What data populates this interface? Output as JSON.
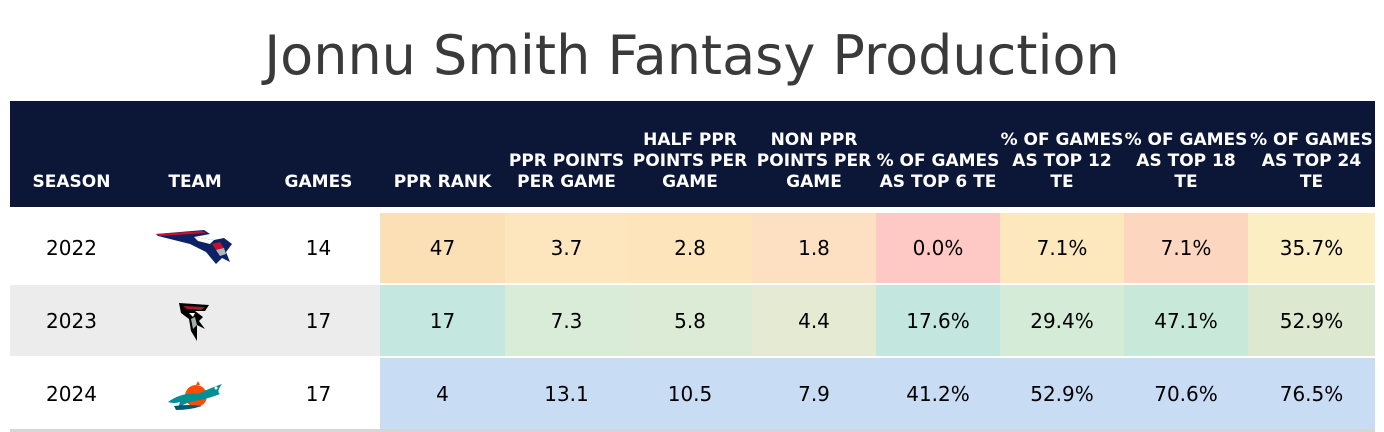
{
  "title": "Jonnu Smith Fantasy Production",
  "columns": [
    "SEASON",
    "TEAM",
    "GAMES",
    "PPR RANK",
    "PPR POINTS PER GAME",
    "HALF PPR POINTS PER GAME",
    "NON PPR POINTS PER GAME",
    "% OF GAMES AS TOP 6 TE",
    "% OF GAMES AS TOP 12 TE",
    "% OF GAMES AS TOP 18 TE",
    "% OF GAMES AS TOP 24 TE"
  ],
  "rows": [
    {
      "season": "2022",
      "team_logo": "patriots-logo",
      "games": "14",
      "ppr_rank": "47",
      "ppr_ppg": "3.7",
      "half_ppr_ppg": "2.8",
      "non_ppr_ppg": "1.8",
      "top6": "0.0%",
      "top12": "7.1%",
      "top18": "7.1%",
      "top24": "35.7%"
    },
    {
      "season": "2023",
      "team_logo": "falcons-logo",
      "games": "17",
      "ppr_rank": "17",
      "ppr_ppg": "7.3",
      "half_ppr_ppg": "5.8",
      "non_ppr_ppg": "4.4",
      "top6": "17.6%",
      "top12": "29.4%",
      "top18": "47.1%",
      "top24": "52.9%"
    },
    {
      "season": "2024",
      "team_logo": "dolphins-logo",
      "games": "17",
      "ppr_rank": "4",
      "ppr_ppg": "13.1",
      "half_ppr_ppg": "10.5",
      "non_ppr_ppg": "7.9",
      "top6": "41.2%",
      "top12": "52.9%",
      "top18": "70.6%",
      "top24": "76.5%"
    }
  ],
  "cell_colors": [
    [
      "#fbe0b6",
      "#fde6be",
      "#fde4bb",
      "#fde0c2",
      "#fec9c5",
      "#fde7bc",
      "#fdd6c0",
      "#fbeec3"
    ],
    [
      "#c4e7df",
      "#d9ecd8",
      "#dcebd6",
      "#e5ead3",
      "#c3e7de",
      "#d3ebd7",
      "#c8e9d9",
      "#dce9d0"
    ],
    [
      "#c8dcf4",
      "#c8dcf4",
      "#c8dcf4",
      "#c8dcf4",
      "#c8dcf4",
      "#c8dcf4",
      "#c8dcf4",
      "#c8dcf4"
    ]
  ],
  "colors": {
    "header_bg": "#0c1637",
    "header_text": "#ffffff",
    "alt_row": "#ececec"
  },
  "chart_data": {
    "type": "table",
    "title": "Jonnu Smith Fantasy Production",
    "columns": [
      "SEASON",
      "TEAM",
      "GAMES",
      "PPR RANK",
      "PPR POINTS PER GAME",
      "HALF PPR POINTS PER GAME",
      "NON PPR POINTS PER GAME",
      "% OF GAMES AS TOP 6 TE",
      "% OF GAMES AS TOP 12 TE",
      "% OF GAMES AS TOP 18 TE",
      "% OF GAMES AS TOP 24 TE"
    ],
    "rows": [
      [
        "2022",
        "New England Patriots",
        14,
        47,
        3.7,
        2.8,
        1.8,
        0.0,
        7.1,
        7.1,
        35.7
      ],
      [
        "2023",
        "Atlanta Falcons",
        17,
        17,
        7.3,
        5.8,
        4.4,
        17.6,
        29.4,
        47.1,
        52.9
      ],
      [
        "2024",
        "Miami Dolphins",
        17,
        4,
        13.1,
        10.5,
        7.9,
        41.2,
        52.9,
        70.6,
        76.5
      ]
    ]
  }
}
